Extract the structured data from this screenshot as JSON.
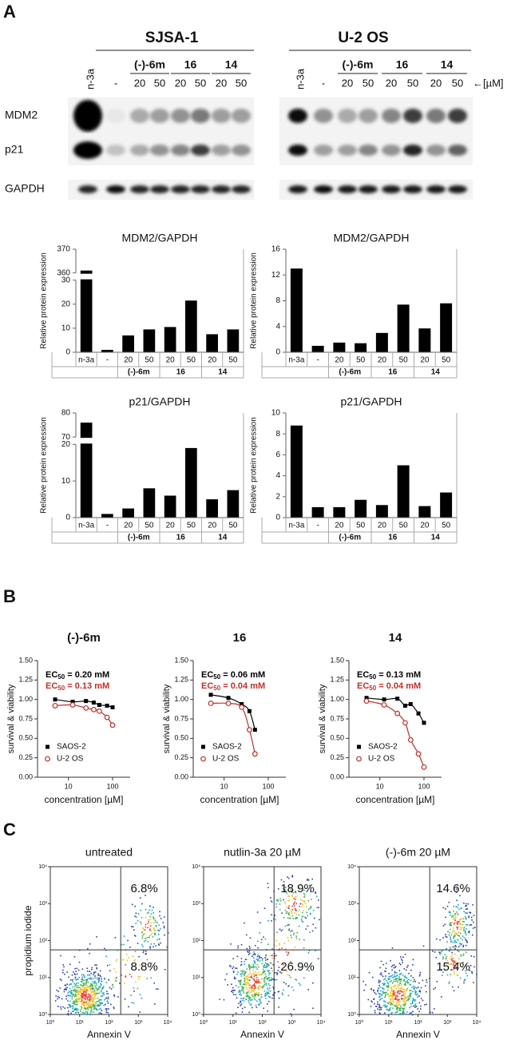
{
  "panels": [
    "A",
    "B",
    "C"
  ],
  "blot": {
    "cell_lines": [
      "SJSA-1",
      "U-2 OS"
    ],
    "lanes": [
      "n-3a",
      "-"
    ],
    "groups": [
      "(-)-6m",
      "16",
      "14"
    ],
    "doses": [
      "20",
      "50"
    ],
    "unit": "←[µM]",
    "rows": [
      "MDM2",
      "p21",
      "GAPDH"
    ]
  },
  "chart_data": [
    {
      "type": "bar",
      "title": "MDM2/GAPDH",
      "ylabel": "Relative protein expression",
      "categories": [
        "n-3a",
        "-",
        "20",
        "50",
        "20",
        "50",
        "20",
        "50"
      ],
      "groups": [
        "(-)-6m",
        "16",
        "14"
      ],
      "values": [
        361,
        1,
        7,
        9.5,
        10.5,
        21.5,
        7.5,
        9.5
      ],
      "color": "#000000",
      "ylim": [
        0,
        370
      ],
      "axis_break": [
        30,
        360
      ],
      "yticks": [
        0,
        10,
        20,
        30,
        360,
        370
      ]
    },
    {
      "type": "bar",
      "title": "MDM2/GAPDH",
      "ylabel": "Relative protein expression",
      "categories": [
        "n-3a",
        "-",
        "20",
        "50",
        "20",
        "50",
        "20",
        "50"
      ],
      "groups": [
        "(-)-6m",
        "16",
        "14"
      ],
      "values": [
        13,
        1,
        1.5,
        1.4,
        3,
        7.4,
        3.7,
        7.6
      ],
      "color": "#000000",
      "ylim": [
        0,
        16
      ],
      "yticks": [
        0,
        4,
        8,
        12,
        16
      ]
    },
    {
      "type": "bar",
      "title": "p21/GAPDH",
      "ylabel": "Relative protein expression",
      "categories": [
        "n-3a",
        "-",
        "20",
        "50",
        "20",
        "50",
        "20",
        "50"
      ],
      "groups": [
        "(-)-6m",
        "16",
        "14"
      ],
      "values": [
        76,
        1,
        2.5,
        8,
        6,
        19,
        5,
        7.5
      ],
      "color": "#000000",
      "ylim": [
        0,
        80
      ],
      "axis_break": [
        20,
        70
      ],
      "yticks": [
        0,
        10,
        20,
        70,
        80
      ]
    },
    {
      "type": "bar",
      "title": "p21/GAPDH",
      "ylabel": "Relative protein expression",
      "categories": [
        "n-3a",
        "-",
        "20",
        "50",
        "20",
        "50",
        "20",
        "50"
      ],
      "groups": [
        "(-)-6m",
        "16",
        "14"
      ],
      "values": [
        8.8,
        1,
        1,
        1.7,
        1.2,
        5,
        1.1,
        2.4
      ],
      "color": "#000000",
      "ylim": [
        0,
        10
      ],
      "yticks": [
        0,
        2,
        4,
        6,
        8,
        10
      ]
    },
    {
      "type": "line",
      "title": "(-)-6m",
      "annotations": [
        {
          "text": "EC",
          "sub": "50",
          "value_text": " = 0.20 mM",
          "color": "#000000"
        },
        {
          "text": "EC",
          "sub": "50",
          "value_text": " = 0.13 mM",
          "color": "#c0302b"
        }
      ],
      "xlabel": "concentration [µM]",
      "ylabel": "survival & viability",
      "log_x": true,
      "legend": "lower left",
      "x": [
        5,
        12.5,
        25,
        37.5,
        50,
        75,
        100
      ],
      "xlim": [
        2,
        250
      ],
      "xticks": [
        10,
        100
      ],
      "ylim": [
        0,
        1.5
      ],
      "yticks": [
        {
          "value": 0,
          "label": "0.00"
        },
        {
          "value": 0.25,
          "label": "0.25"
        },
        {
          "value": 0.5,
          "label": "0.50"
        },
        {
          "value": 0.75,
          "label": "0.75"
        },
        {
          "value": 1,
          "label": "1.00"
        },
        {
          "value": 1.25,
          "label": "1.25"
        },
        {
          "value": 1.5,
          "label": "1.50"
        }
      ],
      "series": [
        {
          "name": "SAOS-2",
          "color": "#000000",
          "marker": "square",
          "values": [
            1.0,
            0.97,
            0.98,
            0.96,
            0.93,
            0.92,
            0.9
          ]
        },
        {
          "name": "U-2 OS",
          "color": "#c0302b",
          "marker": "open-circle",
          "values": [
            0.92,
            0.93,
            0.89,
            0.87,
            0.85,
            0.77,
            0.67
          ]
        }
      ]
    },
    {
      "type": "line",
      "title": "16",
      "annotations": [
        {
          "text": "EC",
          "sub": "50",
          "value_text": " = 0.06 mM",
          "color": "#000000"
        },
        {
          "text": "EC",
          "sub": "50",
          "value_text": " = 0.04 mM",
          "color": "#c0302b"
        }
      ],
      "xlabel": "concentration [µM]",
      "ylabel": "survival & viability",
      "log_x": true,
      "legend": "lower left",
      "x": [
        5,
        12.5,
        25,
        37.5,
        50
      ],
      "xlim": [
        2,
        250
      ],
      "xticks": [
        10,
        100
      ],
      "ylim": [
        0,
        1.5
      ],
      "yticks": [
        {
          "value": 0,
          "label": "0.00"
        },
        {
          "value": 0.25,
          "label": "0.25"
        },
        {
          "value": 0.5,
          "label": "0.50"
        },
        {
          "value": 0.75,
          "label": "0.75"
        },
        {
          "value": 1,
          "label": "1.00"
        },
        {
          "value": 1.25,
          "label": "1.25"
        },
        {
          "value": 1.5,
          "label": "1.50"
        }
      ],
      "series": [
        {
          "name": "SAOS-2",
          "color": "#000000",
          "marker": "square",
          "values": [
            1.06,
            1.02,
            0.94,
            0.85,
            0.61
          ]
        },
        {
          "name": "U-2 OS",
          "color": "#c0302b",
          "marker": "open-circle",
          "values": [
            0.95,
            0.95,
            0.9,
            0.61,
            0.3
          ]
        }
      ]
    },
    {
      "type": "line",
      "title": "14",
      "annotations": [
        {
          "text": "EC",
          "sub": "50",
          "value_text": " = 0.13 mM",
          "color": "#000000"
        },
        {
          "text": "EC",
          "sub": "50",
          "value_text": " = 0.04 mM",
          "color": "#c0302b"
        }
      ],
      "xlabel": "concentration [µM]",
      "ylabel": "survival & viability",
      "log_x": true,
      "legend": "lower left",
      "x": [
        5,
        12.5,
        25,
        37.5,
        50,
        75,
        100
      ],
      "xlim": [
        2,
        250
      ],
      "xticks": [
        10,
        100
      ],
      "ylim": [
        0,
        1.5
      ],
      "yticks": [
        {
          "value": 0,
          "label": "0.00"
        },
        {
          "value": 0.25,
          "label": "0.25"
        },
        {
          "value": 0.5,
          "label": "0.50"
        },
        {
          "value": 0.75,
          "label": "0.75"
        },
        {
          "value": 1,
          "label": "1.00"
        },
        {
          "value": 1.25,
          "label": "1.25"
        },
        {
          "value": 1.5,
          "label": "1.50"
        }
      ],
      "series": [
        {
          "name": "SAOS-2",
          "color": "#000000",
          "marker": "square",
          "values": [
            1.02,
            1.0,
            1.01,
            0.92,
            0.94,
            0.82,
            0.7
          ]
        },
        {
          "name": "U-2 OS",
          "color": "#c0302b",
          "marker": "open-circle",
          "values": [
            0.98,
            0.93,
            0.82,
            0.7,
            0.48,
            0.3,
            0.13
          ]
        }
      ]
    },
    {
      "type": "flow",
      "title": "untreated",
      "values": [
        6.8,
        8.8
      ],
      "value_labels": [
        "6.8%",
        "8.8%"
      ],
      "xlabel": "Annexin V",
      "ylabel": "propidium iodide",
      "log_scale": true,
      "xlim": [
        1,
        10000
      ],
      "ylim": [
        1,
        10000
      ],
      "xticks": [
        {
          "value": 1,
          "label": "10⁰"
        },
        {
          "value": 10,
          "label": "10¹"
        },
        {
          "value": 100,
          "label": "10²"
        },
        {
          "value": 1000,
          "label": "10³"
        },
        {
          "value": 10000,
          "label": "10⁴"
        }
      ],
      "yticks": [
        {
          "value": 1,
          "label": "10⁰"
        },
        {
          "value": 10,
          "label": "10¹"
        },
        {
          "value": 100,
          "label": "10²"
        },
        {
          "value": 1000,
          "label": "10³"
        },
        {
          "value": 10000,
          "label": "10⁴"
        }
      ]
    },
    {
      "type": "flow",
      "title": "nutlin-3a 20 µM",
      "values": [
        18.9,
        26.9
      ],
      "value_labels": [
        "18.9%",
        "26.9%"
      ],
      "xlabel": "Annexin V",
      "log_scale": true,
      "xlim": [
        1,
        10000
      ],
      "ylim": [
        1,
        10000
      ],
      "xticks": [
        {
          "value": 1,
          "label": "10⁰"
        },
        {
          "value": 10,
          "label": "10¹"
        },
        {
          "value": 100,
          "label": "10²"
        },
        {
          "value": 1000,
          "label": "10³"
        },
        {
          "value": 10000,
          "label": "10⁴"
        }
      ],
      "yticks": [
        {
          "value": 1,
          "label": "10⁰"
        },
        {
          "value": 10,
          "label": "10¹"
        },
        {
          "value": 100,
          "label": "10²"
        },
        {
          "value": 1000,
          "label": "10³"
        },
        {
          "value": 10000,
          "label": "10⁴"
        }
      ]
    },
    {
      "type": "flow",
      "title": "(-)-6m 20 µM",
      "values": [
        14.6,
        15.4
      ],
      "value_labels": [
        "14.6%",
        "15.4%"
      ],
      "xlabel": "Annexin V",
      "log_scale": true,
      "xlim": [
        1,
        10000
      ],
      "ylim": [
        1,
        10000
      ],
      "xticks": [
        {
          "value": 1,
          "label": "10⁰"
        },
        {
          "value": 10,
          "label": "10¹"
        },
        {
          "value": 100,
          "label": "10²"
        },
        {
          "value": 1000,
          "label": "10³"
        },
        {
          "value": 10000,
          "label": "10⁴"
        }
      ],
      "yticks": [
        {
          "value": 1,
          "label": "10⁰"
        },
        {
          "value": 10,
          "label": "10¹"
        },
        {
          "value": 100,
          "label": "10²"
        },
        {
          "value": 1000,
          "label": "10³"
        },
        {
          "value": 10000,
          "label": "10⁴"
        }
      ]
    }
  ]
}
